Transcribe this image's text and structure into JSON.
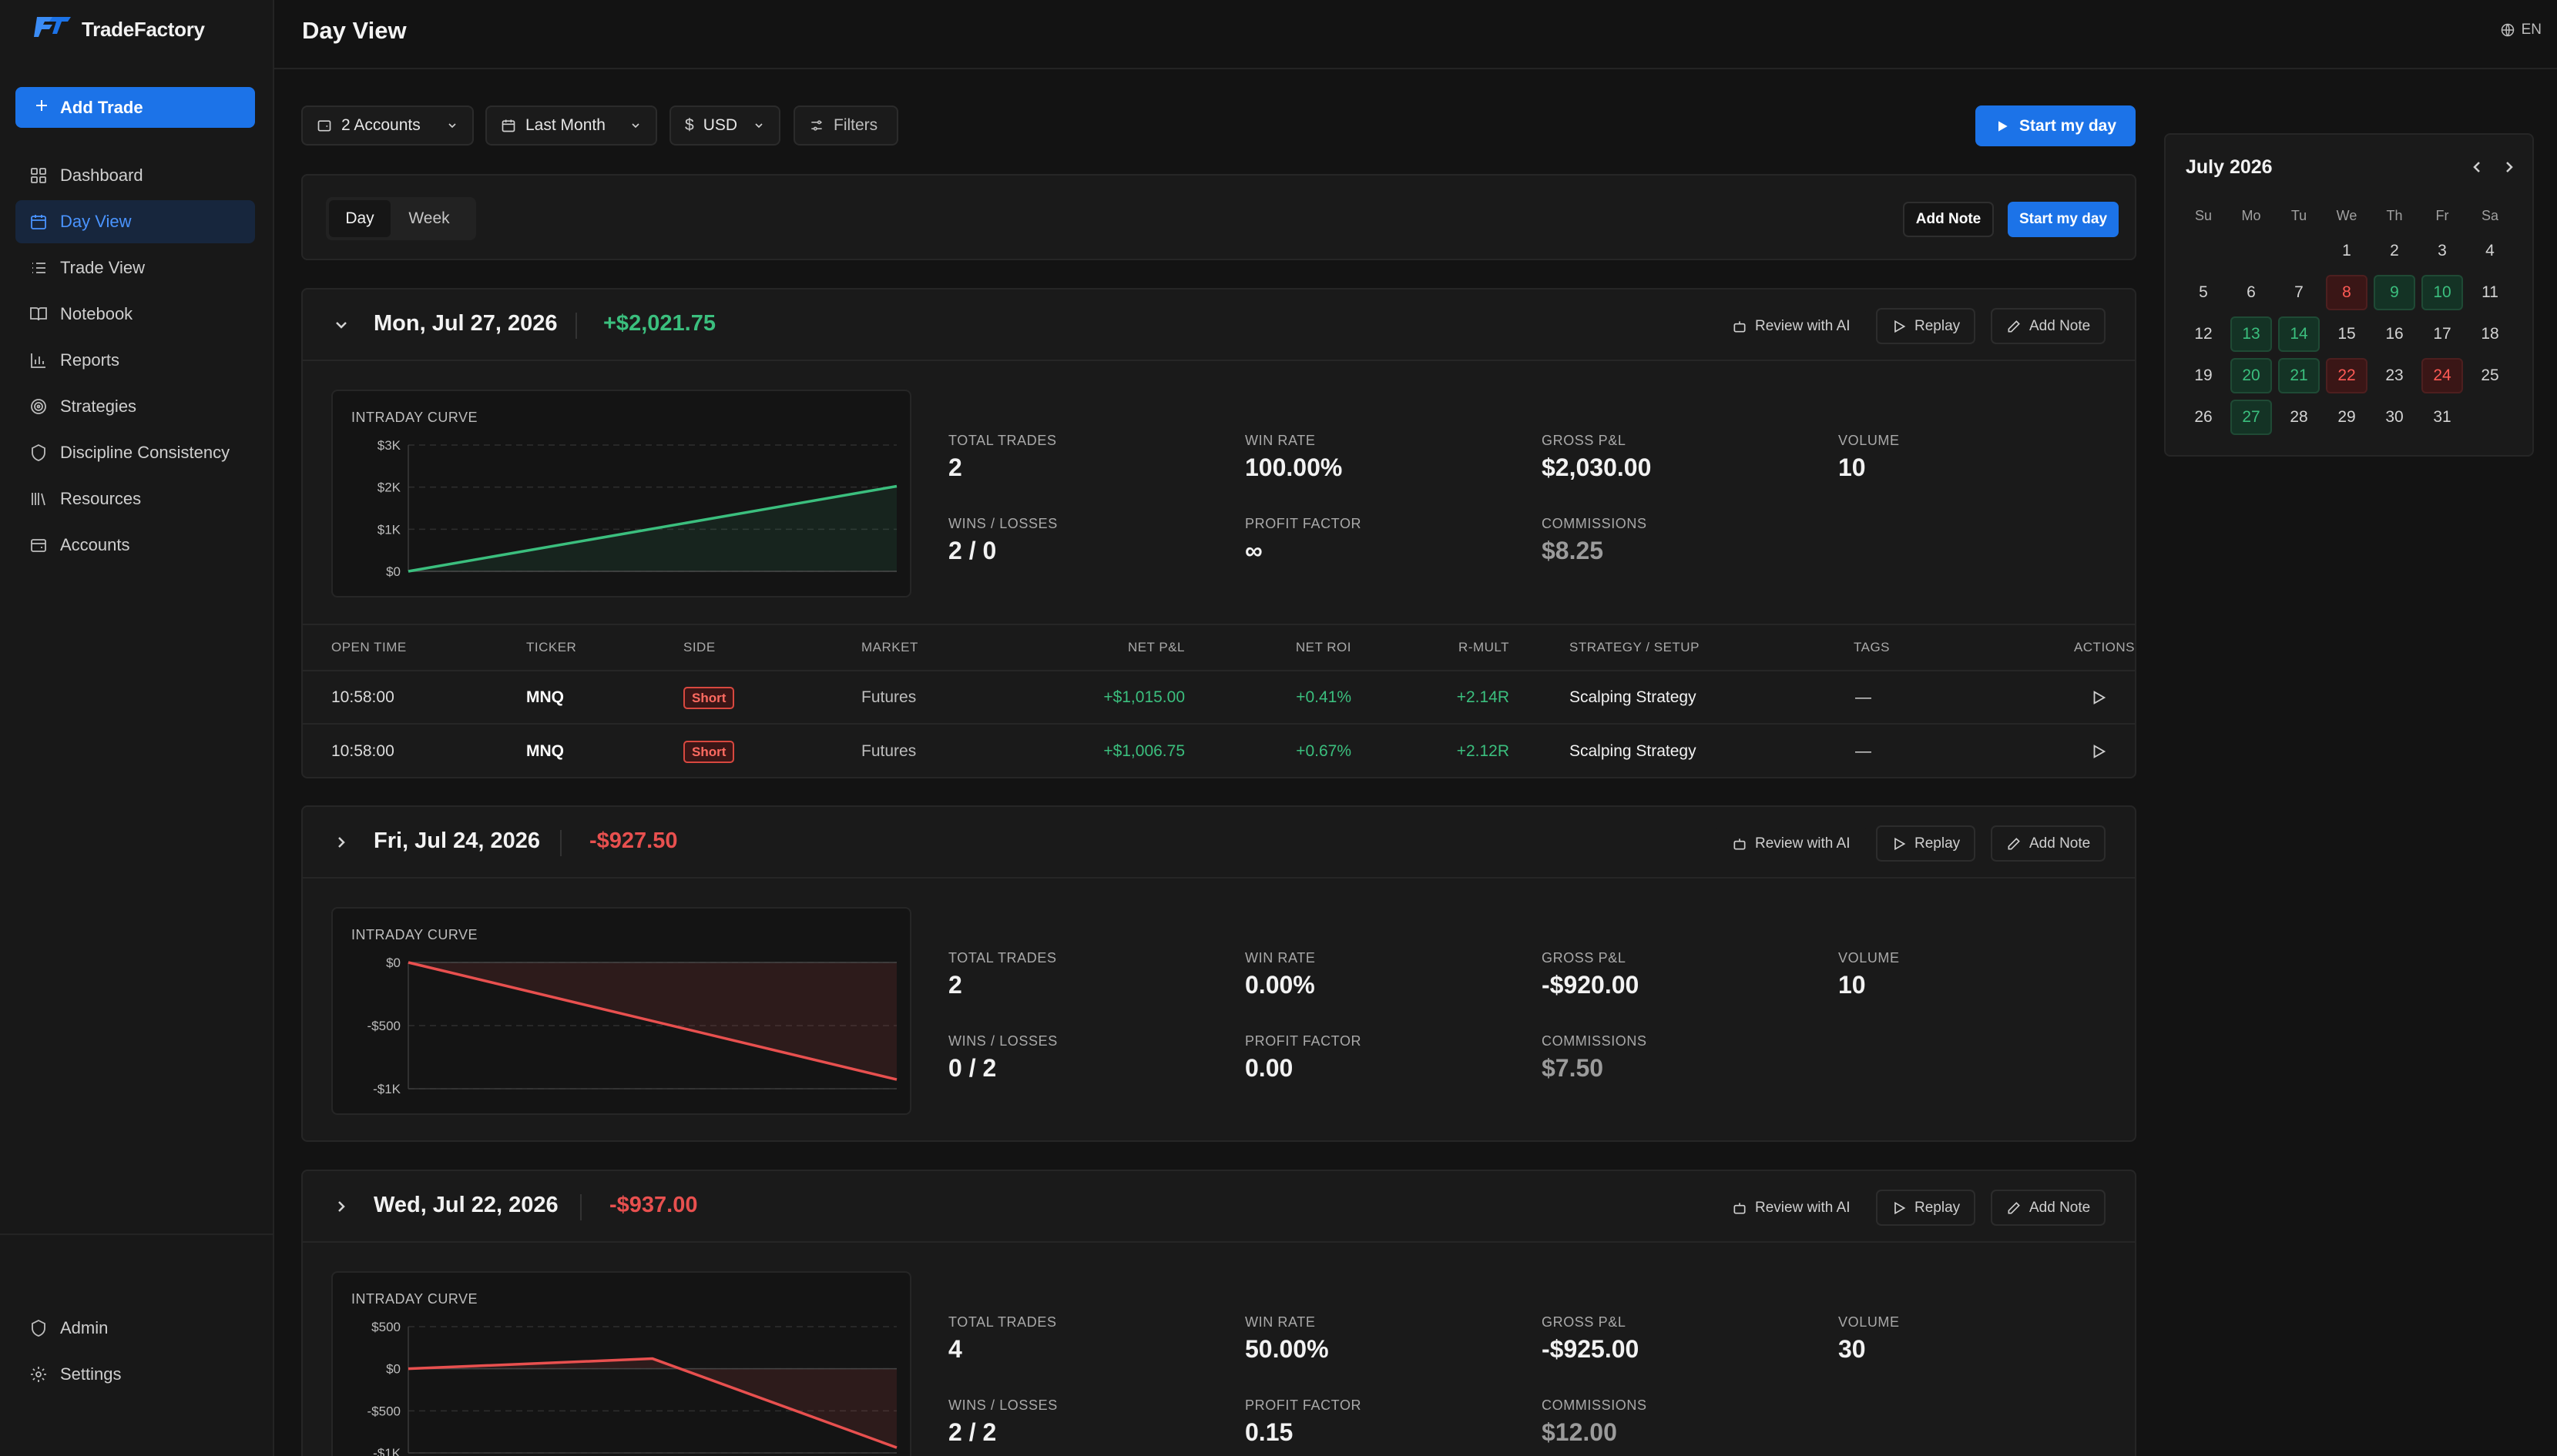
{
  "app": {
    "name": "TradeFactory",
    "language": "EN"
  },
  "colors": {
    "accent": "#1c73e8",
    "profit": "#3bbf7e",
    "loss": "#e8504f"
  },
  "sidebar": {
    "add_trade_label": "Add Trade",
    "items": [
      {
        "label": "Dashboard",
        "icon": "dashboard-icon"
      },
      {
        "label": "Day View",
        "icon": "calendar-icon",
        "active": true
      },
      {
        "label": "Trade View",
        "icon": "list-icon"
      },
      {
        "label": "Notebook",
        "icon": "book-icon"
      },
      {
        "label": "Reports",
        "icon": "bar-chart-icon"
      },
      {
        "label": "Strategies",
        "icon": "target-icon"
      },
      {
        "label": "Discipline Consistency",
        "icon": "shield-icon"
      },
      {
        "label": "Resources",
        "icon": "library-icon"
      },
      {
        "label": "Accounts",
        "icon": "wallet-icon"
      }
    ],
    "bottom_items": [
      {
        "label": "Admin",
        "icon": "shield-icon"
      },
      {
        "label": "Settings",
        "icon": "gear-icon"
      }
    ]
  },
  "header": {
    "title": "Day View"
  },
  "filters": {
    "accounts": "2 Accounts",
    "period": "Last Month",
    "currency_symbol": "$",
    "currency": "USD",
    "filters_label": "Filters",
    "start_day_label": "Start my day"
  },
  "view_tabs": {
    "tabs": [
      "Day",
      "Week"
    ],
    "active": "Day",
    "add_note_label": "Add Note",
    "start_day_label": "Start my day"
  },
  "day_actions": {
    "review": "Review with AI",
    "replay": "Replay",
    "add_note": "Add Note"
  },
  "stat_labels": {
    "total_trades": "TOTAL TRADES",
    "win_rate": "WIN RATE",
    "gross_pnl": "GROSS P&L",
    "volume": "VOLUME",
    "wins_losses": "WINS / LOSSES",
    "profit_factor": "PROFIT FACTOR",
    "commissions": "COMMISSIONS",
    "chart_title": "INTRADAY CURVE"
  },
  "days": [
    {
      "date": "Mon, Jul 27, 2026",
      "net_pnl": "+$2,021.75",
      "sign": "pos",
      "expanded": true,
      "total_trades": "2",
      "win_rate": "100.00%",
      "gross_pnl": "$2,030.00",
      "volume": "10",
      "wins_losses": "2 / 0",
      "profit_factor": "∞",
      "commissions": "$8.25",
      "chart_data": {
        "type": "area",
        "y_ticks": [
          "$3K",
          "$2K",
          "$1K",
          "$0"
        ],
        "ylim": [
          0,
          3000
        ],
        "points": [
          0,
          2021.75
        ]
      }
    },
    {
      "date": "Fri, Jul 24, 2026",
      "net_pnl": "-$927.50",
      "sign": "neg",
      "expanded": false,
      "total_trades": "2",
      "win_rate": "0.00%",
      "gross_pnl": "-$920.00",
      "volume": "10",
      "wins_losses": "0 / 2",
      "profit_factor": "0.00",
      "commissions": "$7.50",
      "chart_data": {
        "type": "area",
        "y_ticks": [
          "$0",
          "-$500",
          "-$1K"
        ],
        "ylim": [
          -1000,
          0
        ],
        "points": [
          0,
          -927.5
        ]
      }
    },
    {
      "date": "Wed, Jul 22, 2026",
      "net_pnl": "-$937.00",
      "sign": "neg",
      "expanded": false,
      "total_trades": "4",
      "win_rate": "50.00%",
      "gross_pnl": "-$925.00",
      "volume": "30",
      "wins_losses": "2 / 2",
      "profit_factor": "0.15",
      "commissions": "$12.00",
      "chart_data": {
        "type": "area",
        "y_ticks": [
          "$500",
          "$0",
          "-$500",
          "-$1K"
        ],
        "ylim": [
          -1000,
          500
        ],
        "points": [
          0,
          120,
          -937
        ]
      }
    }
  ],
  "trades_table": {
    "columns": [
      "OPEN TIME",
      "TICKER",
      "SIDE",
      "MARKET",
      "NET P&L",
      "NET ROI",
      "R-MULT",
      "STRATEGY / SETUP",
      "TAGS",
      "ACTIONS"
    ],
    "rows": [
      {
        "open_time": "10:58:00",
        "ticker": "MNQ",
        "side": "Short",
        "market": "Futures",
        "net_pnl": "+$1,015.00",
        "net_roi": "+0.41%",
        "r_mult": "+2.14R",
        "strategy": "Scalping Strategy",
        "tags": "—"
      },
      {
        "open_time": "10:58:00",
        "ticker": "MNQ",
        "side": "Short",
        "market": "Futures",
        "net_pnl": "+$1,006.75",
        "net_roi": "+0.67%",
        "r_mult": "+2.12R",
        "strategy": "Scalping Strategy",
        "tags": "—"
      }
    ]
  },
  "calendar": {
    "month_label": "July 2026",
    "weekdays": [
      "Su",
      "Mo",
      "Tu",
      "We",
      "Th",
      "Fr",
      "Sa"
    ],
    "first_weekday_offset": 3,
    "days_in_month": 31,
    "wins": [
      9,
      10,
      13,
      14,
      20,
      21,
      27
    ],
    "losses": [
      8,
      22,
      24
    ]
  }
}
